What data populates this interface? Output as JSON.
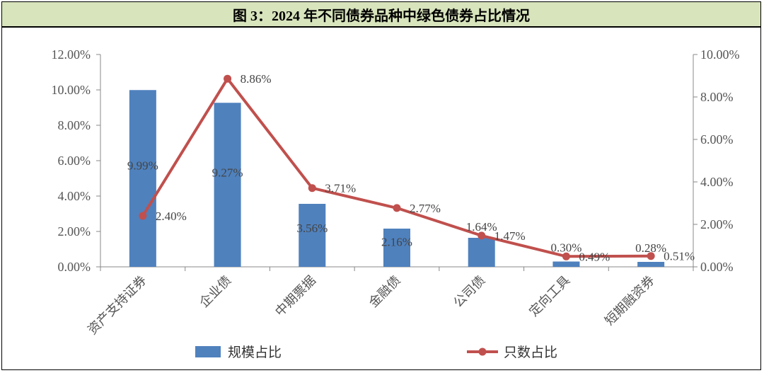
{
  "figure": {
    "title": "图 3：2024 年不同债券品种中绿色债券占比情况"
  },
  "chart_data": {
    "type": "bar",
    "categories": [
      "资产支持证券",
      "企业债",
      "中期票据",
      "金融债",
      "公司债",
      "定向工具",
      "短期融资券"
    ],
    "series": [
      {
        "name": "规模占比",
        "type": "bar",
        "axis": "left",
        "values": [
          9.99,
          9.27,
          3.56,
          2.16,
          1.64,
          0.3,
          0.28
        ],
        "labels": [
          "9.99%",
          "9.27%",
          "3.56%",
          "2.16%",
          "1.64%",
          "0.30%",
          "0.28%"
        ],
        "color": "#4f81bd"
      },
      {
        "name": "只数占比",
        "type": "line",
        "axis": "right",
        "values": [
          2.4,
          8.86,
          3.71,
          2.77,
          1.47,
          0.49,
          0.51
        ],
        "labels": [
          "2.40%",
          "8.86%",
          "3.71%",
          "2.77%",
          "1.47%",
          "0.49%",
          "0.51%"
        ],
        "color": "#c0504d"
      }
    ],
    "left_axis": {
      "ylim": [
        0,
        12
      ],
      "ticks": [
        "0.00%",
        "2.00%",
        "4.00%",
        "6.00%",
        "8.00%",
        "10.00%",
        "12.00%"
      ]
    },
    "right_axis": {
      "ylim": [
        0,
        10
      ],
      "ticks": [
        "0.00%",
        "2.00%",
        "4.00%",
        "6.00%",
        "8.00%",
        "10.00%"
      ]
    },
    "grid": false,
    "legend_position": "bottom"
  }
}
